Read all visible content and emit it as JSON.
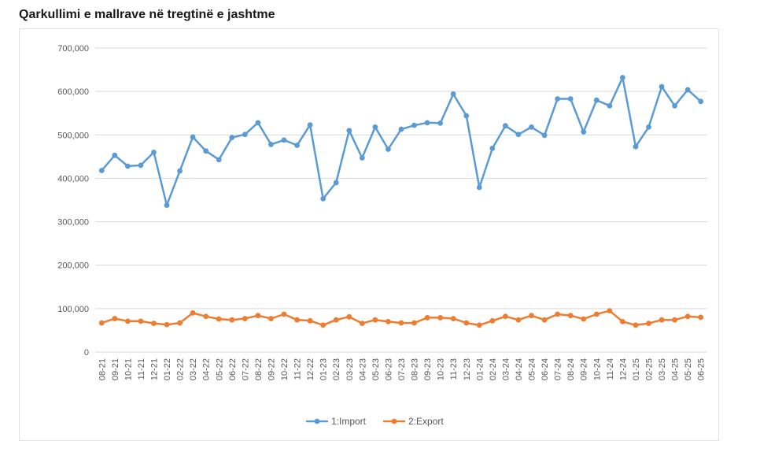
{
  "title": "Qarkullimi e mallrave në tregtinë e jashtme",
  "chart_data": {
    "type": "line",
    "title": "",
    "xlabel": "",
    "ylabel": "",
    "ylim": [
      0,
      700000
    ],
    "yticks": [
      0,
      100000,
      200000,
      300000,
      400000,
      500000,
      600000,
      700000
    ],
    "ytick_labels": [
      "0",
      "100,000",
      "200,000",
      "300,000",
      "400,000",
      "500,000",
      "600,000",
      "700,000"
    ],
    "grid": true,
    "legend_position": "bottom",
    "categories": [
      "08-21",
      "09-21",
      "10-21",
      "11-21",
      "12-21",
      "01-22",
      "02-22",
      "03-22",
      "04-22",
      "05-22",
      "06-22",
      "07-22",
      "08-22",
      "09-22",
      "10-22",
      "11-22",
      "12-22",
      "01-23",
      "02-23",
      "03-23",
      "04-23",
      "05-23",
      "06-23",
      "07-23",
      "08-23",
      "09-23",
      "10-23",
      "11-23",
      "12-23",
      "01-24",
      "02-24",
      "03-24",
      "04-24",
      "05-24",
      "06-24",
      "07-24",
      "08-24",
      "09-24",
      "10-24",
      "11-24",
      "12-24",
      "01-25",
      "02-25",
      "03-25",
      "04-25",
      "05-25",
      "06-25"
    ],
    "series": [
      {
        "name": "1:Import",
        "color": "#5b9bd5",
        "values": [
          418000,
          453000,
          428000,
          430000,
          460000,
          338000,
          417000,
          495000,
          463000,
          443000,
          494000,
          501000,
          528000,
          478000,
          488000,
          476000,
          523000,
          353000,
          390000,
          510000,
          447000,
          518000,
          467000,
          513000,
          522000,
          528000,
          527000,
          594000,
          544000,
          379000,
          469000,
          521000,
          501000,
          518000,
          499000,
          583000,
          583000,
          507000,
          580000,
          567000,
          632000,
          473000,
          518000,
          611000,
          567000,
          604000,
          577000
        ]
      },
      {
        "name": "2:Export",
        "color": "#ed7d31",
        "values": [
          67000,
          77000,
          71000,
          71000,
          66000,
          63000,
          67000,
          90000,
          82000,
          76000,
          74000,
          77000,
          84000,
          77000,
          87000,
          74000,
          72000,
          62000,
          74000,
          81000,
          66000,
          74000,
          70000,
          67000,
          67000,
          79000,
          79000,
          77000,
          67000,
          62000,
          72000,
          82000,
          74000,
          84000,
          74000,
          87000,
          84000,
          76000,
          87000,
          95000,
          70000,
          62000,
          66000,
          74000,
          74000,
          82000,
          80000
        ]
      }
    ]
  }
}
